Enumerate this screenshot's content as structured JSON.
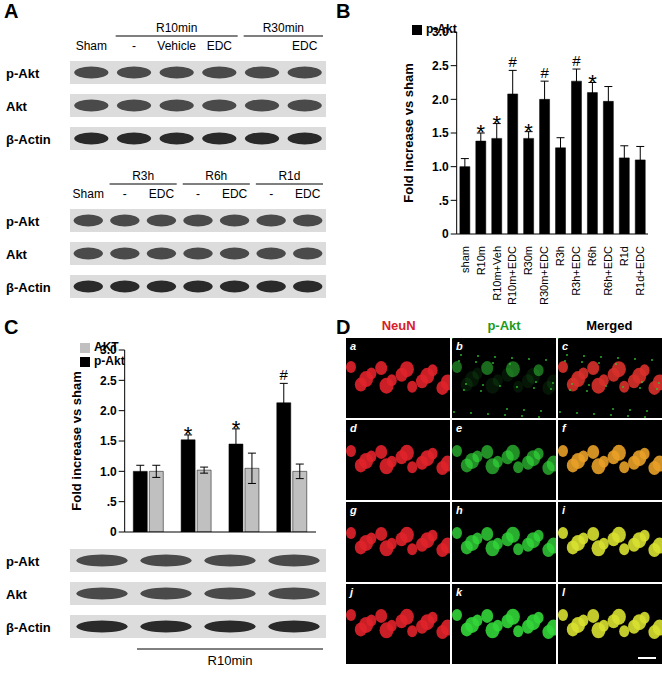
{
  "chart_data": [
    {
      "panel": "B",
      "type": "bar",
      "ylabel": "Fold increase vs sham",
      "categories": [
        "sham",
        "R10m",
        "R10m+Veh",
        "R10m+EDC",
        "R30m",
        "R30m+EDC",
        "R3h",
        "R3h+EDC",
        "R6h",
        "R6h+EDC",
        "R1d",
        "R1d+EDC"
      ],
      "series": [
        {
          "name": "p-Akt",
          "color": "#000000",
          "values": [
            1.0,
            1.38,
            1.42,
            2.08,
            1.42,
            2.0,
            1.28,
            2.27,
            2.1,
            1.97,
            1.13,
            1.1
          ],
          "errors": [
            0.12,
            0.12,
            0.22,
            0.35,
            0.1,
            0.27,
            0.15,
            0.18,
            0.15,
            0.22,
            0.18,
            0.2
          ],
          "annotations": [
            null,
            "*",
            "*",
            "#",
            "*",
            "#",
            null,
            "#",
            "*",
            null,
            null,
            null
          ]
        }
      ],
      "ylim": [
        0,
        3
      ],
      "yticks": [
        0,
        {
          "value": 0.5,
          "label": ".5"
        },
        {
          "value": 1,
          "label": "1.0"
        },
        1.5,
        {
          "value": 2,
          "label": "2.0"
        },
        2.5,
        {
          "value": 3,
          "label": "3.0"
        }
      ],
      "legend": "upper left",
      "grid": false
    },
    {
      "panel": "C",
      "type": "bar",
      "ylabel": "Fold increase vs sham",
      "categories": [
        null,
        null,
        null,
        null
      ],
      "series": [
        {
          "name": "p-Akt",
          "color": "#000000",
          "values": [
            1.0,
            1.52,
            1.45,
            2.13
          ],
          "errors": [
            0.1,
            0.08,
            0.25,
            0.32
          ],
          "annotations": [
            null,
            "*",
            "*",
            "#"
          ]
        },
        {
          "name": "AKT",
          "color": "#c0c0c0",
          "values": [
            1.0,
            1.02,
            1.05,
            1.0
          ],
          "errors": [
            0.1,
            0.05,
            0.25,
            0.12
          ],
          "annotations": [
            null,
            null,
            null,
            null
          ]
        }
      ],
      "ylim": [
        0,
        3
      ],
      "yticks": [
        0,
        {
          "value": 0.5,
          "label": ".5"
        },
        {
          "value": 1,
          "label": "1.0"
        },
        1.5,
        {
          "value": 2,
          "label": "2.0"
        },
        2.5,
        {
          "value": 3,
          "label": "3.0"
        }
      ],
      "legend": "upper left",
      "grid": false,
      "tick_labels": "y"
    }
  ],
  "figure": {
    "A": {
      "panel": "A",
      "blots": [
        {
          "rows": [
            "p-Akt",
            "Akt",
            "β-Actin"
          ],
          "lanes": [
            "Sham",
            "-",
            "Vehicle",
            "EDC",
            null,
            "EDC"
          ],
          "groups": [
            {
              "label": "R10min",
              "from": 1,
              "to": 3
            },
            {
              "label": "R30min",
              "from": 4,
              "to": 5
            }
          ]
        },
        {
          "rows": [
            "p-Akt",
            "Akt",
            "β-Actin"
          ],
          "lanes": [
            "Sham",
            "-",
            "EDC",
            "-",
            "EDC",
            "-",
            "EDC"
          ],
          "groups": [
            {
              "label": "R3h",
              "from": 1,
              "to": 2
            },
            {
              "label": "R6h",
              "from": 3,
              "to": 4
            },
            {
              "label": "R1d",
              "from": 5,
              "to": 6
            }
          ]
        }
      ]
    },
    "C_blot": {
      "rows": [
        "p-Akt",
        "Akt",
        "β-Actin"
      ],
      "lanes": [
        null,
        null,
        null,
        null
      ],
      "groups": [
        {
          "label": "R10min",
          "from": 1,
          "to": 3
        }
      ]
    },
    "D": {
      "panel": "D",
      "columns": [
        "NeuN",
        "p-Akt",
        "Merged"
      ],
      "letters": [
        [
          "a",
          "b",
          "c"
        ],
        [
          "d",
          "e",
          "f"
        ],
        [
          "g",
          "h",
          "i"
        ],
        [
          "j",
          "k",
          "l"
        ]
      ]
    }
  }
}
